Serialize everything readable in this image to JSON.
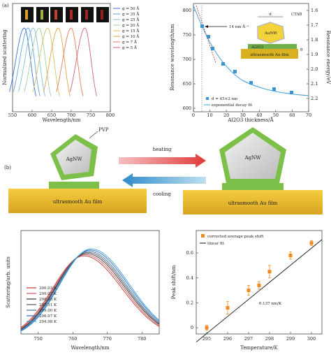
{
  "panel_a": {
    "label": "(a)",
    "left_chart": {
      "ylabel": "Normalized scattering",
      "xlabel": "Wavelength/nm",
      "xticks": [
        "550",
        "600",
        "650",
        "700",
        "750",
        "800"
      ],
      "legend": [
        "g = 50 Å",
        "g = 35 Å",
        "g = 25 Å",
        "g = 20 Å",
        "g = 15 Å",
        "g = 10 Å",
        "g = 7 Å",
        "g = 5 Å"
      ],
      "colors": [
        "#3a6fd0",
        "#5fa3e0",
        "#7cc3d8",
        "#9fd0a0",
        "#d6c060",
        "#e8a040",
        "#e07d5a",
        "#d4607a"
      ]
    },
    "right_chart": {
      "ylabel": "Resonance wavelength/nm",
      "ylabel2": "Resonance energy/eV",
      "xlabel": "Al2O3 thickness/Å",
      "xticks": [
        "0",
        "10",
        "20",
        "30",
        "40",
        "50",
        "60",
        "70"
      ],
      "yticks": [
        "600",
        "650",
        "700",
        "750",
        "800"
      ],
      "yticks2": [
        "1.6",
        "1.7",
        "1.8",
        "1.9",
        "2.0",
        "2.1",
        "2.2"
      ],
      "annotation": "14 nm·Å⁻¹",
      "legend_data": "d = 45±2 nm",
      "legend_fit": "exponential decay fit",
      "inset_d": "d",
      "inset_ctab": "CTAB",
      "inset_aunw": "AuNW",
      "inset_al2o3": "Al2O3",
      "inset_g": "g",
      "inset_film": "ultrasmooth Au film"
    }
  },
  "panel_b": {
    "label": "(b)",
    "pvp": "PVP",
    "agnw": "AgNW",
    "heating": "heating",
    "cooling": "cooling",
    "film": "ultrasmooth Au film"
  },
  "chart_data": [
    {
      "type": "line",
      "xlabel": "Wavelength/nm",
      "ylabel": "Scattering/arb. units",
      "xlim": [
        745,
        785
      ],
      "xticks": [
        "750",
        "760",
        "770",
        "780"
      ],
      "series": [
        {
          "name": "300.03 K",
          "peak": 763.2
        },
        {
          "name": "299.07 K",
          "peak": 763.6
        },
        {
          "name": "298.03 K",
          "peak": 764.0
        },
        {
          "name": "297.51 K",
          "peak": 764.3
        },
        {
          "name": "299.00 K",
          "peak": 764.6
        },
        {
          "name": "296.07 K",
          "peak": 765.0
        },
        {
          "name": "294.98 K",
          "peak": 765.3
        }
      ],
      "colors": [
        "#c0392b",
        "#d35566",
        "#333333",
        "#555555",
        "#4a6fa5",
        "#2f6fbf",
        "#3aa0d8"
      ]
    },
    {
      "type": "scatter",
      "xlabel": "Temperature/K",
      "ylabel": "Peak shift/nm",
      "xlim": [
        294.5,
        300.5
      ],
      "ylim": [
        -0.05,
        0.78
      ],
      "xticks": [
        "295",
        "296",
        "297",
        "298",
        "299",
        "300"
      ],
      "yticks": [
        "0",
        "0.2",
        "0.4",
        "0.6"
      ],
      "legend_points": "corrected average peak shift",
      "legend_line": "linear fit",
      "annotation": "0.137 nm/K",
      "x": [
        295,
        296,
        297,
        297.5,
        298,
        299,
        300
      ],
      "y": [
        0.0,
        0.16,
        0.3,
        0.34,
        0.45,
        0.58,
        0.68
      ],
      "err": [
        0.02,
        0.05,
        0.04,
        0.03,
        0.05,
        0.03,
        0.02
      ],
      "fit": {
        "slope": 0.137,
        "x0": 294.9,
        "y0": -0.06
      }
    }
  ]
}
